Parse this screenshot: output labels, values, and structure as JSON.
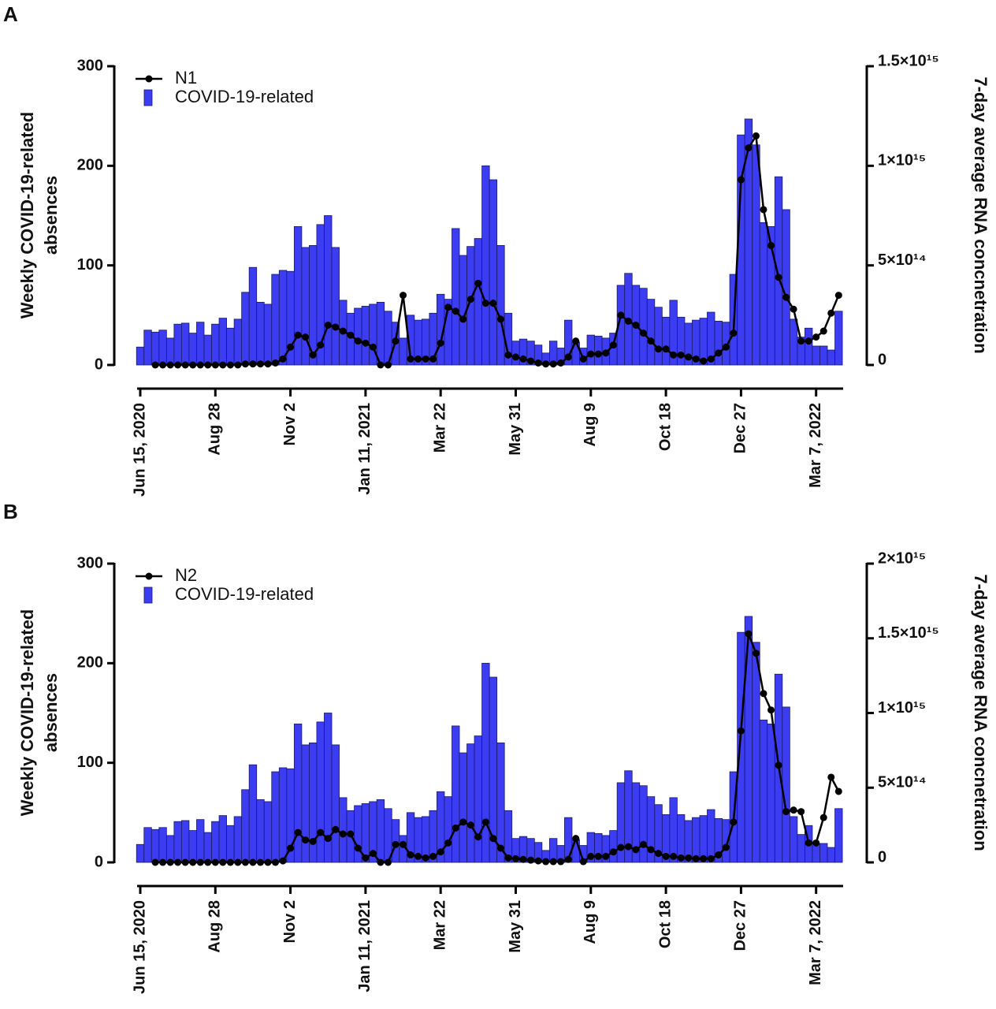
{
  "chart_data": [
    {
      "type": "bar",
      "panel": "A",
      "ylabel": [
        "Weekly COVID-19-related",
        "absences"
      ],
      "y2label": "7-day average RNA concnetration",
      "categories": [
        "Jun 15, 2020",
        null,
        null,
        null,
        null,
        null,
        null,
        null,
        null,
        null,
        "Aug 28",
        null,
        null,
        null,
        null,
        null,
        null,
        null,
        null,
        null,
        "Nov 2",
        null,
        null,
        null,
        null,
        null,
        null,
        null,
        null,
        null,
        "Jan 11, 2021",
        null,
        null,
        null,
        null,
        null,
        null,
        null,
        null,
        null,
        "Mar 22",
        null,
        null,
        null,
        null,
        null,
        null,
        null,
        null,
        null,
        "May 31",
        null,
        null,
        null,
        null,
        null,
        null,
        null,
        null,
        null,
        "Aug 9",
        null,
        null,
        null,
        null,
        null,
        null,
        null,
        null,
        null,
        "Oct 18",
        null,
        null,
        null,
        null,
        null,
        null,
        null,
        null,
        null,
        "Dec 27",
        null,
        null,
        null,
        null,
        null,
        null,
        null,
        null,
        null,
        "Mar 7, 2022",
        null,
        null,
        null
      ],
      "ylim": [
        0,
        300
      ],
      "yticks": [
        0,
        100,
        200,
        300
      ],
      "y2lim": [
        0,
        1500000000000000.0
      ],
      "y2ticks": [
        0,
        {
          "value": 500000000000000.0,
          "label": "5×10¹⁴"
        },
        {
          "value": 1000000000000000.0,
          "label": "1×10¹⁵"
        },
        {
          "value": 1500000000000000.0,
          "label": "1.5×10¹⁵"
        }
      ],
      "series": [
        {
          "name": "N1",
          "type": "line",
          "axis": "y2",
          "color": "#000000",
          "values": [
            null,
            null,
            0,
            0,
            0,
            0,
            0,
            0,
            0,
            0,
            0,
            0,
            0,
            0,
            5000000000000.0,
            5000000000000.0,
            5000000000000.0,
            5000000000000.0,
            10000000000000.0,
            30000000000000.0,
            90000000000000.0,
            150000000000000.0,
            140000000000000.0,
            50000000000000.0,
            100000000000000.0,
            200000000000000.0,
            190000000000000.0,
            170000000000000.0,
            150000000000000.0,
            120000000000000.0,
            110000000000000.0,
            90000000000000.0,
            0,
            0,
            120000000000000.0,
            350000000000000.0,
            30000000000000.0,
            30000000000000.0,
            30000000000000.0,
            30000000000000.0,
            110000000000000.0,
            290000000000000.0,
            270000000000000.0,
            230000000000000.0,
            330000000000000.0,
            410000000000000.0,
            310000000000000.0,
            310000000000000.0,
            230000000000000.0,
            50000000000000.0,
            40000000000000.0,
            30000000000000.0,
            20000000000000.0,
            10000000000000.0,
            5000000000000.0,
            5000000000000.0,
            10000000000000.0,
            40000000000000.0,
            120000000000000.0,
            30000000000000.0,
            55000000000000.0,
            55000000000000.0,
            60000000000000.0,
            100000000000000.0,
            250000000000000.0,
            220000000000000.0,
            200000000000000.0,
            160000000000000.0,
            120000000000000.0,
            80000000000000.0,
            80000000000000.0,
            50000000000000.0,
            50000000000000.0,
            40000000000000.0,
            30000000000000.0,
            20000000000000.0,
            30000000000000.0,
            60000000000000.0,
            90000000000000.0,
            160000000000000.0,
            930000000000000.0,
            1090000000000000.0,
            1150000000000000.0,
            780000000000000.0,
            600000000000000.0,
            440000000000000.0,
            340000000000000.0,
            280000000000000.0,
            120000000000000.0,
            120000000000000.0,
            140000000000000.0,
            170000000000000.0,
            260000000000000.0,
            350000000000000.0
          ]
        },
        {
          "name": "COVID-19-related",
          "type": "bar",
          "color": "#3c3cf2",
          "values": [
            18,
            35,
            33,
            35,
            27,
            41,
            42,
            32,
            43,
            30,
            41,
            47,
            37,
            46,
            73,
            98,
            63,
            61,
            91,
            95,
            94,
            139,
            118,
            120,
            141,
            150,
            118,
            65,
            52,
            57,
            59,
            61,
            63,
            54,
            43,
            27,
            50,
            45,
            46,
            52,
            71,
            66,
            137,
            110,
            119,
            127,
            200,
            186,
            120,
            52,
            24,
            26,
            24,
            20,
            12,
            24,
            17,
            45,
            23,
            17,
            30,
            29,
            27,
            32,
            80,
            92,
            80,
            77,
            66,
            58,
            48,
            65,
            48,
            42,
            45,
            47,
            53,
            44,
            43,
            91,
            231,
            247,
            221,
            143,
            139,
            189,
            156,
            46,
            28,
            37,
            19,
            19,
            15,
            54
          ]
        }
      ]
    },
    {
      "type": "bar",
      "panel": "B",
      "ylabel": [
        "Weekly COVID-19-related",
        "absences"
      ],
      "y2label": "7-day average RNA concnetration",
      "categories": [
        "Jun 15, 2020",
        null,
        null,
        null,
        null,
        null,
        null,
        null,
        null,
        null,
        "Aug 28",
        null,
        null,
        null,
        null,
        null,
        null,
        null,
        null,
        null,
        "Nov 2",
        null,
        null,
        null,
        null,
        null,
        null,
        null,
        null,
        null,
        "Jan 11, 2021",
        null,
        null,
        null,
        null,
        null,
        null,
        null,
        null,
        null,
        "Mar 22",
        null,
        null,
        null,
        null,
        null,
        null,
        null,
        null,
        null,
        "May 31",
        null,
        null,
        null,
        null,
        null,
        null,
        null,
        null,
        null,
        "Aug 9",
        null,
        null,
        null,
        null,
        null,
        null,
        null,
        null,
        null,
        "Oct 18",
        null,
        null,
        null,
        null,
        null,
        null,
        null,
        null,
        null,
        "Dec 27",
        null,
        null,
        null,
        null,
        null,
        null,
        null,
        null,
        null,
        "Mar 7, 2022",
        null,
        null,
        null
      ],
      "ylim": [
        0,
        300
      ],
      "yticks": [
        0,
        100,
        200,
        300
      ],
      "y2lim": [
        0,
        2000000000000000.0
      ],
      "y2ticks": [
        0,
        {
          "value": 500000000000000.0,
          "label": "5×10¹⁴"
        },
        {
          "value": 1000000000000000.0,
          "label": "1×10¹⁵"
        },
        {
          "value": 1500000000000000.0,
          "label": "1.5×10¹⁵"
        },
        {
          "value": 2000000000000000.0,
          "label": "2×10¹⁵"
        }
      ],
      "series": [
        {
          "name": "N2",
          "type": "line",
          "axis": "y2",
          "color": "#000000",
          "values": [
            null,
            null,
            0,
            0,
            0,
            0,
            0,
            0,
            0,
            0,
            0,
            0,
            0,
            0,
            0,
            0,
            0,
            0,
            0,
            10000000000000.0,
            95000000000000.0,
            200000000000000.0,
            150000000000000.0,
            140000000000000.0,
            200000000000000.0,
            160000000000000.0,
            220000000000000.0,
            190000000000000.0,
            190000000000000.0,
            95000000000000.0,
            30000000000000.0,
            60000000000000.0,
            0,
            0,
            120000000000000.0,
            120000000000000.0,
            50000000000000.0,
            40000000000000.0,
            30000000000000.0,
            40000000000000.0,
            70000000000000.0,
            130000000000000.0,
            230000000000000.0,
            270000000000000.0,
            250000000000000.0,
            170000000000000.0,
            270000000000000.0,
            160000000000000.0,
            95000000000000.0,
            30000000000000.0,
            25000000000000.0,
            20000000000000.0,
            15000000000000.0,
            10000000000000.0,
            5000000000000.0,
            5000000000000.0,
            5000000000000.0,
            20000000000000.0,
            160000000000000.0,
            5000000000000.0,
            40000000000000.0,
            40000000000000.0,
            40000000000000.0,
            70000000000000.0,
            100000000000000.0,
            105000000000000.0,
            85000000000000.0,
            120000000000000.0,
            85000000000000.0,
            60000000000000.0,
            40000000000000.0,
            40000000000000.0,
            30000000000000.0,
            30000000000000.0,
            25000000000000.0,
            25000000000000.0,
            25000000000000.0,
            50000000000000.0,
            100000000000000.0,
            270000000000000.0,
            880000000000000.0,
            1530000000000000.0,
            1400000000000000.0,
            1130000000000000.0,
            1020000000000000.0,
            650000000000000.0,
            340000000000000.0,
            350000000000000.0,
            340000000000000.0,
            130000000000000.0,
            130000000000000.0,
            300000000000000.0,
            570000000000000.0,
            475000000000000.0
          ]
        },
        {
          "name": "COVID-19-related",
          "type": "bar",
          "color": "#3c3cf2",
          "values": [
            18,
            35,
            33,
            35,
            27,
            41,
            42,
            32,
            43,
            30,
            41,
            47,
            37,
            46,
            73,
            98,
            63,
            61,
            91,
            95,
            94,
            139,
            118,
            120,
            141,
            150,
            118,
            65,
            52,
            57,
            59,
            61,
            63,
            54,
            43,
            27,
            50,
            45,
            46,
            52,
            71,
            66,
            137,
            110,
            119,
            127,
            200,
            186,
            120,
            52,
            24,
            26,
            24,
            20,
            12,
            24,
            17,
            45,
            23,
            17,
            30,
            29,
            27,
            32,
            80,
            92,
            80,
            77,
            66,
            58,
            48,
            65,
            48,
            42,
            45,
            47,
            53,
            44,
            43,
            91,
            231,
            247,
            221,
            143,
            139,
            189,
            156,
            46,
            28,
            37,
            19,
            19,
            15,
            54
          ]
        }
      ]
    }
  ]
}
